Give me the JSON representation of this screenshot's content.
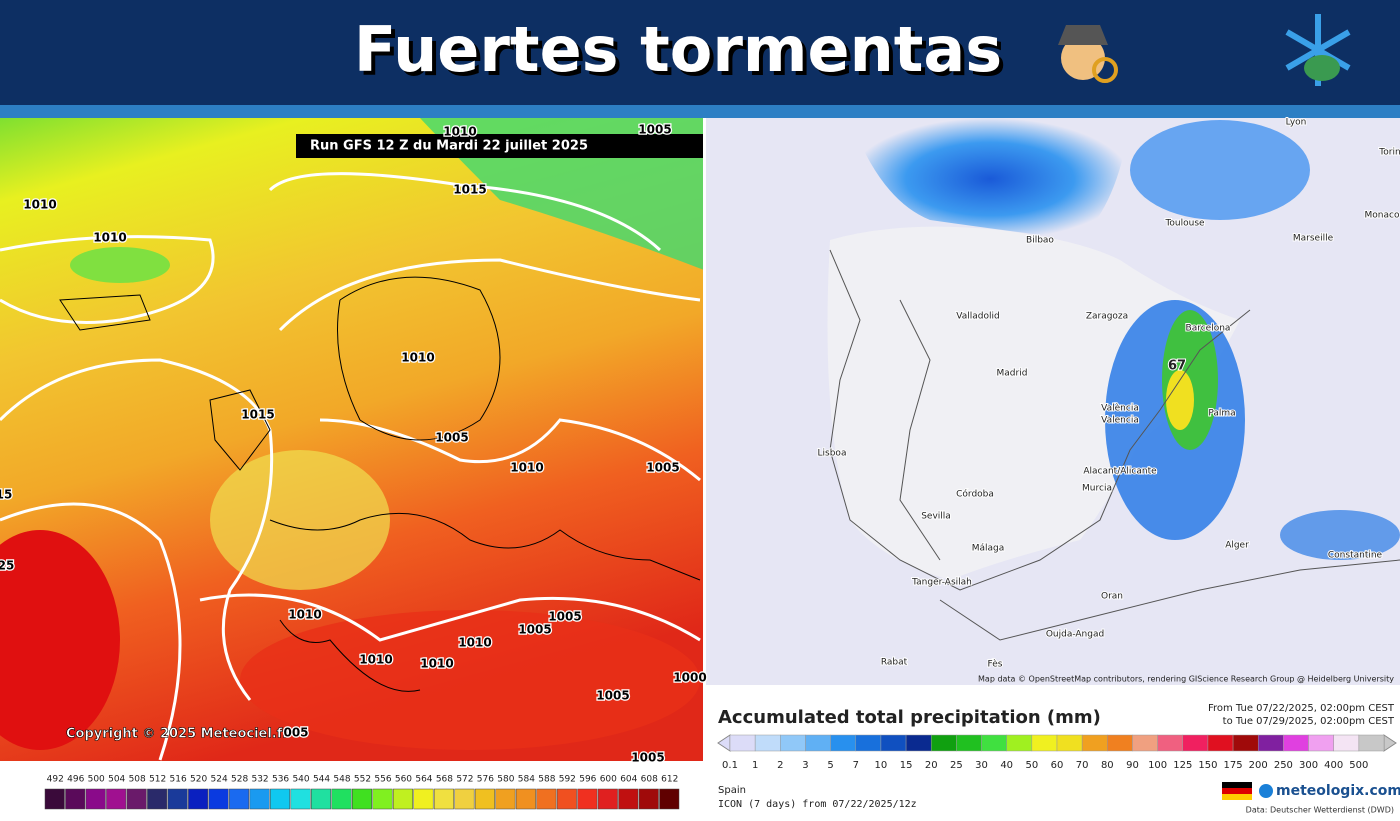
{
  "header": {
    "title": "Fuertes tormentas"
  },
  "left_map": {
    "run_label": "Run GFS 12 Z du Mardi 22 juillet 2025",
    "isobar_labels": [
      "1010",
      "1010",
      "1015",
      "1010",
      "1005",
      "1010",
      "1015",
      "1005",
      "1010",
      "1005",
      "1010",
      "1005",
      "1005",
      "1010",
      "1010",
      "1010",
      "1005",
      "1005",
      "1000",
      "15",
      "25",
      "005"
    ],
    "copyright": "Copyright © 2025 Meteociel.fr",
    "scale": {
      "ticks": [
        492,
        496,
        500,
        504,
        508,
        512,
        516,
        520,
        524,
        528,
        532,
        536,
        540,
        544,
        548,
        552,
        556,
        560,
        564,
        568,
        572,
        576,
        580,
        584,
        588,
        592,
        596,
        600,
        604,
        608,
        612
      ],
      "colors": [
        "#3a0a3a",
        "#5a0a5a",
        "#8a0a8a",
        "#a01090",
        "#6a1a6a",
        "#2a2a6a",
        "#1a3a9a",
        "#0a20c0",
        "#0a3ae0",
        "#1a6af0",
        "#1a9af0",
        "#10c8f0",
        "#20e0e0",
        "#20e0a0",
        "#20e060",
        "#40e020",
        "#80f020",
        "#c0f020",
        "#f0f020",
        "#f0e040",
        "#f0d040",
        "#f0c020",
        "#f0a020",
        "#f09020",
        "#f07020",
        "#f05020",
        "#f03020",
        "#e02020",
        "#c01010",
        "#a00a0a",
        "#600000"
      ]
    }
  },
  "right_map": {
    "cities": [
      "Lyon",
      "Torin",
      "Monaco",
      "Bilbao",
      "Toulouse",
      "Marseille",
      "Valladolid",
      "Zaragoza",
      "Barcelona",
      "Madrid",
      "València",
      "Valencia",
      "Palma",
      "Lisboa",
      "Alacant/Alicante",
      "Murcia",
      "Córdoba",
      "Sevilla",
      "Málaga",
      "Alger",
      "Constantine",
      "Tanger-Asilah",
      "Oran",
      "Oujda-Angad",
      "Rabat",
      "Fès"
    ],
    "max_value": "67",
    "attribution": "Map data © OpenStreetMap contributors, rendering GIScience Research Group @ Heidelberg University",
    "title": "Accumulated total precipitation (mm)",
    "from": "From Tue 07/22/2025, 02:00pm CEST",
    "to": "to Tue 07/29/2025, 02:00pm CEST",
    "region": "Spain",
    "model": "ICON (7 days) from 07/22/2025/12z",
    "brand": "meteologix.com",
    "source": "Data: Deutscher Wetterdienst (DWD)",
    "scale": {
      "ticks": [
        0.1,
        1,
        2,
        3,
        5,
        7,
        10,
        15,
        20,
        25,
        30,
        40,
        50,
        60,
        70,
        80,
        90,
        100,
        125,
        150,
        175,
        200,
        250,
        300,
        400,
        500
      ],
      "colors": [
        "#dcdcf8",
        "#c0dcfa",
        "#90c8f8",
        "#60b0f4",
        "#2890ee",
        "#1870dc",
        "#1050c0",
        "#0a2a90",
        "#10a010",
        "#20c020",
        "#40e040",
        "#a0f020",
        "#f0f020",
        "#f0e020",
        "#f0a020",
        "#f08020",
        "#f0a080",
        "#f06080",
        "#f02060",
        "#e01020",
        "#a00a0a",
        "#8020a0",
        "#e040e0",
        "#f0a0f0",
        "#f4e4f4",
        "#c8c8c8"
      ]
    }
  }
}
